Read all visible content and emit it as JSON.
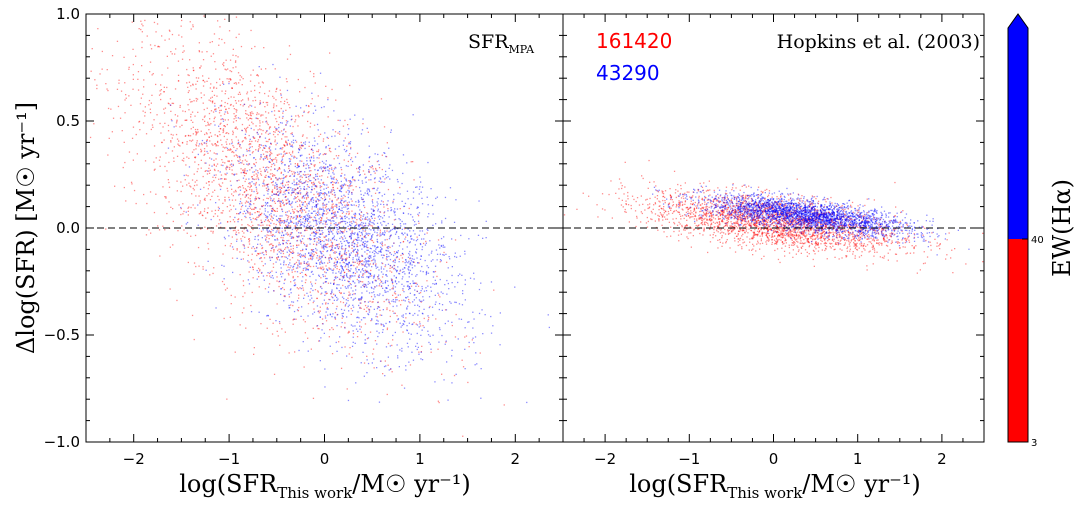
{
  "chart_data": [
    {
      "type": "scatter",
      "panel": "left",
      "annotation_main": "SFR",
      "annotation_sub": "MPA",
      "ylabel": "Δlog(SFR) [M☉ yr⁻¹]",
      "xlabel_main": "log(SFR",
      "xlabel_sub": "This work",
      "xlabel_rest": "/M☉ yr⁻¹)",
      "xlim": [
        -2.5,
        2.5
      ],
      "ylim": [
        -1.0,
        1.0
      ],
      "xticks": [
        "−2",
        "−1",
        "0",
        "1",
        "2"
      ],
      "xtick_values": [
        -2,
        -1,
        0,
        1,
        2
      ],
      "yticks": [
        "1.0",
        "0.5",
        "0.0",
        "−0.5",
        "−1.0"
      ],
      "ytick_values": [
        1.0,
        0.5,
        0.0,
        -0.5,
        -1.0
      ],
      "reference_line_y": 0.0,
      "series": [
        {
          "name": "EW(Hα) < 40",
          "color": "#ff0000",
          "center_x": -0.6,
          "center_y": 0.2,
          "slope": -0.3,
          "spread_x": 0.75,
          "spread_y": 0.28
        },
        {
          "name": "EW(Hα) ≥ 40",
          "color": "#0000ff",
          "center_x": 0.2,
          "center_y": -0.05,
          "slope": -0.2,
          "spread_x": 0.6,
          "spread_y": 0.22
        }
      ]
    },
    {
      "type": "scatter",
      "panel": "right",
      "annotation": "Hopkins et al. (2003)",
      "count_red": "161420",
      "count_blue": "43290",
      "xlabel_main": "log(SFR",
      "xlabel_sub": "This work",
      "xlabel_rest": "/M☉ yr⁻¹)",
      "xlim": [
        -2.5,
        2.5
      ],
      "ylim": [
        -1.0,
        1.0
      ],
      "xticks": [
        "−2",
        "−1",
        "0",
        "1",
        "2"
      ],
      "xtick_values": [
        -2,
        -1,
        0,
        1,
        2
      ],
      "reference_line_y": 0.0,
      "series": [
        {
          "name": "EW(Hα) < 40",
          "color": "#ff0000",
          "center_x": 0.0,
          "center_y": 0.03,
          "slope": -0.05,
          "spread_x": 0.75,
          "spread_y": 0.06
        },
        {
          "name": "EW(Hα) ≥ 40",
          "color": "#0000ff",
          "center_x": 0.4,
          "center_y": 0.06,
          "slope": -0.05,
          "spread_x": 0.6,
          "spread_y": 0.035
        }
      ]
    }
  ],
  "colorbar": {
    "title": "EW(Hα)",
    "tick_labels": [
      "40",
      "3"
    ],
    "colors": [
      "#0000ff",
      "#ff0000"
    ],
    "threshold": 40,
    "min": 3
  }
}
